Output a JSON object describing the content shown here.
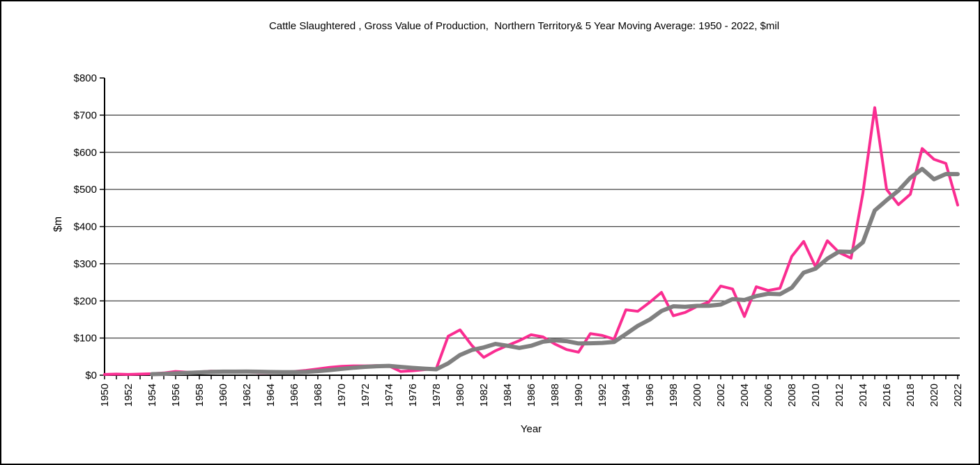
{
  "chart_data": {
    "type": "line",
    "title": "Cattle Slaughtered , Gross Value of Production,  Northern Territory& 5 Year Moving Average: 1950 - 2022, $mil",
    "xlabel": "Year",
    "ylabel": "$m",
    "ylim": [
      0,
      800
    ],
    "ytick_step": 100,
    "ytick_prefix": "$",
    "ytick_labels": [
      "$0",
      "$100",
      "$200",
      "$300",
      "$400",
      "$500",
      "$600",
      "$700",
      "$800"
    ],
    "xtick_label_step": 2,
    "grid": "horizontal",
    "legend": "none",
    "x": [
      1950,
      1951,
      1952,
      1953,
      1954,
      1955,
      1956,
      1957,
      1958,
      1959,
      1960,
      1961,
      1962,
      1963,
      1964,
      1965,
      1966,
      1967,
      1968,
      1969,
      1970,
      1971,
      1972,
      1973,
      1974,
      1975,
      1976,
      1977,
      1978,
      1979,
      1980,
      1981,
      1982,
      1983,
      1984,
      1985,
      1986,
      1987,
      1988,
      1989,
      1990,
      1991,
      1992,
      1993,
      1994,
      1995,
      1996,
      1997,
      1998,
      1999,
      2000,
      2001,
      2002,
      2003,
      2004,
      2005,
      2006,
      2007,
      2008,
      2009,
      2010,
      2011,
      2012,
      2013,
      2014,
      2015,
      2016,
      2017,
      2018,
      2019,
      2020,
      2021,
      2022
    ],
    "series": [
      {
        "name": "Cattle Slaughtered Gross Value of Production",
        "color": "#fa2d91",
        "width": 4,
        "values": [
          2,
          3,
          2,
          3,
          4,
          6,
          10,
          8,
          9,
          11,
          10,
          10,
          9,
          7,
          7,
          8,
          10,
          13,
          17,
          21,
          24,
          25,
          25,
          26,
          25,
          10,
          12,
          15,
          18,
          105,
          122,
          80,
          48,
          66,
          80,
          93,
          109,
          103,
          84,
          69,
          62,
          112,
          107,
          97,
          176,
          172,
          196,
          223,
          160,
          169,
          185,
          197,
          240,
          232,
          158,
          238,
          228,
          234,
          320,
          360,
          292,
          362,
          330,
          315,
          490,
          720,
          500,
          459,
          487,
          610,
          581,
          570,
          458
        ]
      },
      {
        "name": "5 Year Moving Average",
        "color": "#808080",
        "width": 6,
        "values": [
          null,
          null,
          null,
          null,
          2.8,
          3.6,
          5,
          6.2,
          7.4,
          8.8,
          9.6,
          9.6,
          9.8,
          9.4,
          8.6,
          8.2,
          8.2,
          9,
          11,
          13.8,
          17,
          20,
          22.4,
          24.2,
          25,
          22.2,
          19.6,
          17.6,
          16,
          32,
          54.4,
          68,
          74.6,
          84.2,
          79.2,
          73.4,
          79.2,
          90.2,
          93.8,
          91.6,
          85.4,
          86,
          86.8,
          89.4,
          110.8,
          132.8,
          149.6,
          172.8,
          185.4,
          184,
          186.6,
          186.8,
          190.2,
          204.6,
          202.4,
          213,
          219.2,
          218,
          235.6,
          276,
          286.8,
          313.6,
          332.8,
          331.8,
          357.8,
          443.4,
          471,
          496.8,
          531.2,
          555.2,
          527.4,
          541.4,
          541.2
        ]
      }
    ],
    "colors": {
      "gridline": "#404040",
      "axis": "#000000",
      "background": "#ffffff"
    }
  }
}
